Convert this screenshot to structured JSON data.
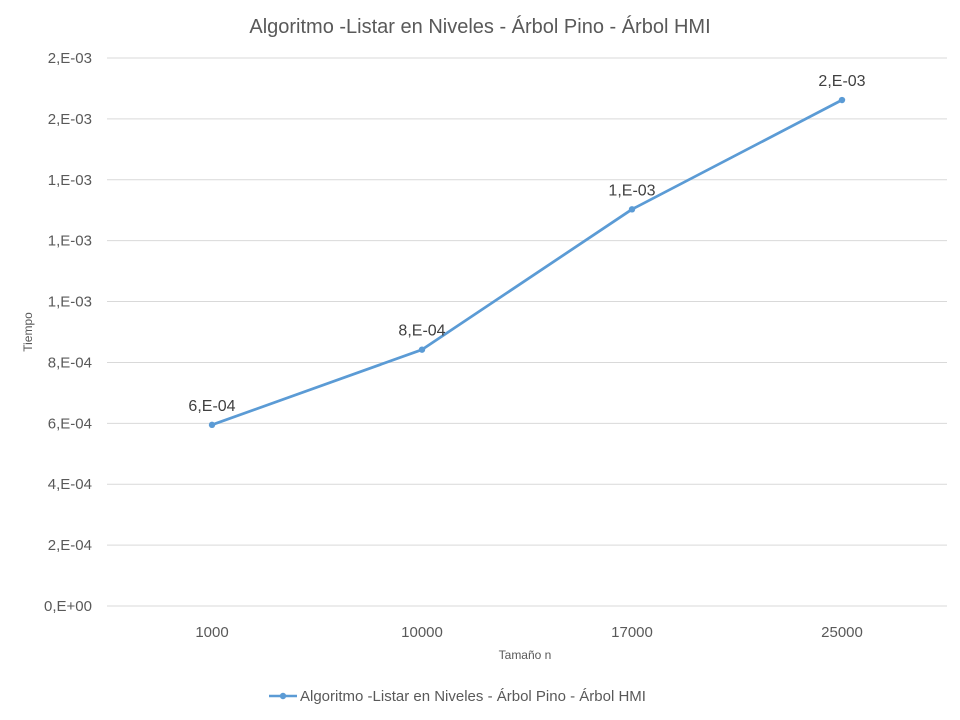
{
  "chart_data": {
    "type": "line",
    "title": "Algoritmo -Listar en Niveles - Árbol Pino - Árbol HMI",
    "xlabel": "Tamaño n",
    "ylabel": "Tiempo",
    "categories": [
      "1000",
      "10000",
      "17000",
      "25000"
    ],
    "series": [
      {
        "name": "Algoritmo -Listar en Niveles - Árbol Pino - Árbol HMI",
        "values": [
          0.000595,
          0.000842,
          0.001303,
          0.001662
        ],
        "data_labels": [
          "6,E-04",
          "8,E-04",
          "1,E-03",
          "2,E-03"
        ],
        "color": "#5b9bd5"
      }
    ],
    "ylim": [
      0,
      0.0018
    ],
    "yticks": [
      0,
      0.0002,
      0.0004,
      0.0006,
      0.0008,
      0.001,
      0.0012,
      0.0014,
      0.0016,
      0.0018
    ],
    "ytick_labels": [
      "0,E+00",
      "2,E-04",
      "4,E-04",
      "6,E-04",
      "8,E-04",
      "1,E-03",
      "1,E-03",
      "1,E-03",
      "2,E-03",
      "2,E-03"
    ],
    "grid": true,
    "legend_position": "bottom"
  }
}
